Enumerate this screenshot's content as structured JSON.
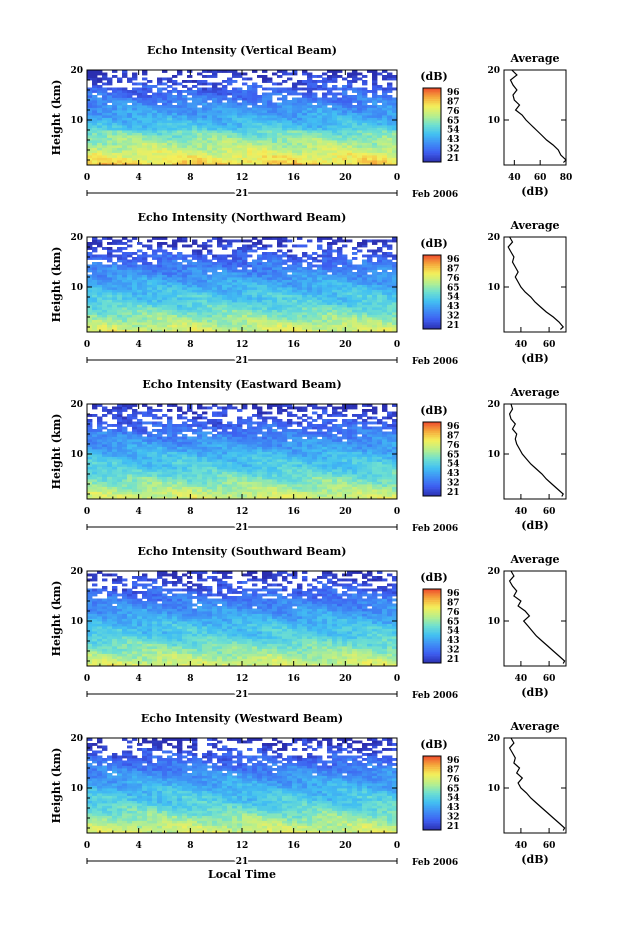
{
  "chart_data": [
    {
      "type": "heatmap",
      "title": "Echo Intensity (Vertical Beam)",
      "ylabel": "Height (km)",
      "xlabel": "",
      "x_ticks": [
        "0",
        "4",
        "8",
        "12",
        "16",
        "20",
        "0"
      ],
      "xlim": [
        0,
        24
      ],
      "y_ticks": [
        "10",
        "20"
      ],
      "ylim": [
        1,
        20
      ],
      "date_label": "21",
      "month_label": "Feb 2006",
      "colorbar": {
        "title": "(dB)",
        "ticks": [
          "96",
          "87",
          "76",
          "65",
          "54",
          "43",
          "32",
          "21"
        ]
      },
      "profile": {
        "title": "Average",
        "xlabel": "(dB)",
        "x_ticks": [
          "40",
          "60",
          "80"
        ],
        "xlim": [
          32,
          80
        ],
        "y_ticks": [
          "10",
          "20"
        ],
        "ylim": [
          1,
          20
        ],
        "heights": [
          1.5,
          2,
          3,
          4,
          5,
          6,
          7,
          8,
          9,
          10,
          11,
          12,
          13,
          14,
          15,
          16,
          17,
          18,
          19,
          20
        ],
        "values": [
          78,
          80,
          76,
          74,
          70,
          65,
          61,
          57,
          53,
          49,
          46,
          41,
          44,
          40,
          39,
          42,
          39,
          37,
          42,
          38
        ]
      }
    },
    {
      "type": "heatmap",
      "title": "Echo Intensity (Northward Beam)",
      "ylabel": "Height (km)",
      "xlabel": "",
      "x_ticks": [
        "0",
        "4",
        "8",
        "12",
        "16",
        "20",
        "0"
      ],
      "xlim": [
        0,
        24
      ],
      "y_ticks": [
        "10",
        "20"
      ],
      "ylim": [
        1,
        20
      ],
      "date_label": "21",
      "month_label": "Feb 2006",
      "colorbar": {
        "title": "(dB)",
        "ticks": [
          "96",
          "87",
          "76",
          "65",
          "54",
          "43",
          "32",
          "21"
        ]
      },
      "profile": {
        "title": "Average",
        "xlabel": "(dB)",
        "x_ticks": [
          "40",
          "60"
        ],
        "xlim": [
          28,
          72
        ],
        "y_ticks": [
          "10",
          "20"
        ],
        "ylim": [
          1,
          20
        ],
        "heights": [
          1.5,
          2,
          3,
          4,
          5,
          6,
          7,
          8,
          9,
          10,
          11,
          12,
          13,
          14,
          15,
          16,
          17,
          18,
          19,
          20
        ],
        "values": [
          68,
          70,
          67,
          63,
          58,
          54,
          50,
          47,
          43,
          40,
          38,
          36,
          38,
          36,
          34,
          35,
          33,
          31,
          34,
          32
        ]
      }
    },
    {
      "type": "heatmap",
      "title": "Echo Intensity (Eastward Beam)",
      "ylabel": "Height (km)",
      "xlabel": "",
      "x_ticks": [
        "0",
        "4",
        "8",
        "12",
        "16",
        "20",
        "0"
      ],
      "xlim": [
        0,
        24
      ],
      "y_ticks": [
        "10",
        "20"
      ],
      "ylim": [
        1,
        20
      ],
      "date_label": "21",
      "month_label": "Feb 2006",
      "colorbar": {
        "title": "(dB)",
        "ticks": [
          "96",
          "87",
          "76",
          "65",
          "54",
          "43",
          "32",
          "21"
        ]
      },
      "profile": {
        "title": "Average",
        "xlabel": "(dB)",
        "x_ticks": [
          "40",
          "60"
        ],
        "xlim": [
          28,
          72
        ],
        "y_ticks": [
          "10",
          "20"
        ],
        "ylim": [
          1,
          20
        ],
        "heights": [
          1.5,
          2,
          3,
          4,
          5,
          6,
          7,
          8,
          9,
          10,
          11,
          12,
          13,
          14,
          15,
          16,
          17,
          18,
          19,
          20
        ],
        "values": [
          69,
          70,
          66,
          62,
          58,
          55,
          51,
          47,
          44,
          41,
          39,
          37,
          36,
          37,
          34,
          36,
          33,
          32,
          34,
          33
        ]
      }
    },
    {
      "type": "heatmap",
      "title": "Echo Intensity (Southward Beam)",
      "ylabel": "Height (km)",
      "xlabel": "",
      "x_ticks": [
        "0",
        "4",
        "8",
        "12",
        "16",
        "20",
        "0"
      ],
      "xlim": [
        0,
        24
      ],
      "y_ticks": [
        "10",
        "20"
      ],
      "ylim": [
        1,
        20
      ],
      "date_label": "21",
      "month_label": "Feb 2006",
      "colorbar": {
        "title": "(dB)",
        "ticks": [
          "96",
          "87",
          "76",
          "65",
          "54",
          "43",
          "32",
          "21"
        ]
      },
      "profile": {
        "title": "Average",
        "xlabel": "(dB)",
        "x_ticks": [
          "40",
          "60"
        ],
        "xlim": [
          28,
          72
        ],
        "y_ticks": [
          "10",
          "20"
        ],
        "ylim": [
          1,
          20
        ],
        "heights": [
          1.5,
          2,
          3,
          4,
          5,
          6,
          7,
          8,
          9,
          10,
          11,
          12,
          13,
          14,
          15,
          16,
          17,
          18,
          19,
          20
        ],
        "values": [
          70,
          71,
          67,
          63,
          59,
          55,
          51,
          48,
          45,
          42,
          46,
          43,
          38,
          40,
          35,
          37,
          34,
          32,
          35,
          33
        ]
      }
    },
    {
      "type": "heatmap",
      "title": "Echo Intensity (Westward Beam)",
      "ylabel": "Height (km)",
      "xlabel": "Local Time",
      "x_ticks": [
        "0",
        "4",
        "8",
        "12",
        "16",
        "20",
        "0"
      ],
      "xlim": [
        0,
        24
      ],
      "y_ticks": [
        "10",
        "20"
      ],
      "ylim": [
        1,
        20
      ],
      "date_label": "21",
      "month_label": "Feb 2006",
      "colorbar": {
        "title": "(dB)",
        "ticks": [
          "96",
          "87",
          "76",
          "65",
          "54",
          "43",
          "32",
          "21"
        ]
      },
      "profile": {
        "title": "Average",
        "xlabel": "(dB)",
        "x_ticks": [
          "40",
          "60"
        ],
        "xlim": [
          28,
          72
        ],
        "y_ticks": [
          "10",
          "20"
        ],
        "ylim": [
          1,
          20
        ],
        "heights": [
          1.5,
          2,
          3,
          4,
          5,
          6,
          7,
          8,
          9,
          10,
          11,
          12,
          13,
          14,
          15,
          16,
          17,
          18,
          19,
          20
        ],
        "values": [
          70,
          71,
          67,
          63,
          59,
          55,
          51,
          47,
          44,
          40,
          38,
          41,
          37,
          39,
          35,
          36,
          34,
          32,
          35,
          33
        ]
      }
    }
  ],
  "colors": {
    "colormap": [
      "#2b2fb0",
      "#3d5ef0",
      "#3f8ef5",
      "#42c0f2",
      "#6fe0d0",
      "#b9ef8a",
      "#f4ef5a",
      "#f5a93c",
      "#ee4a2c"
    ],
    "ink": "#000000"
  }
}
